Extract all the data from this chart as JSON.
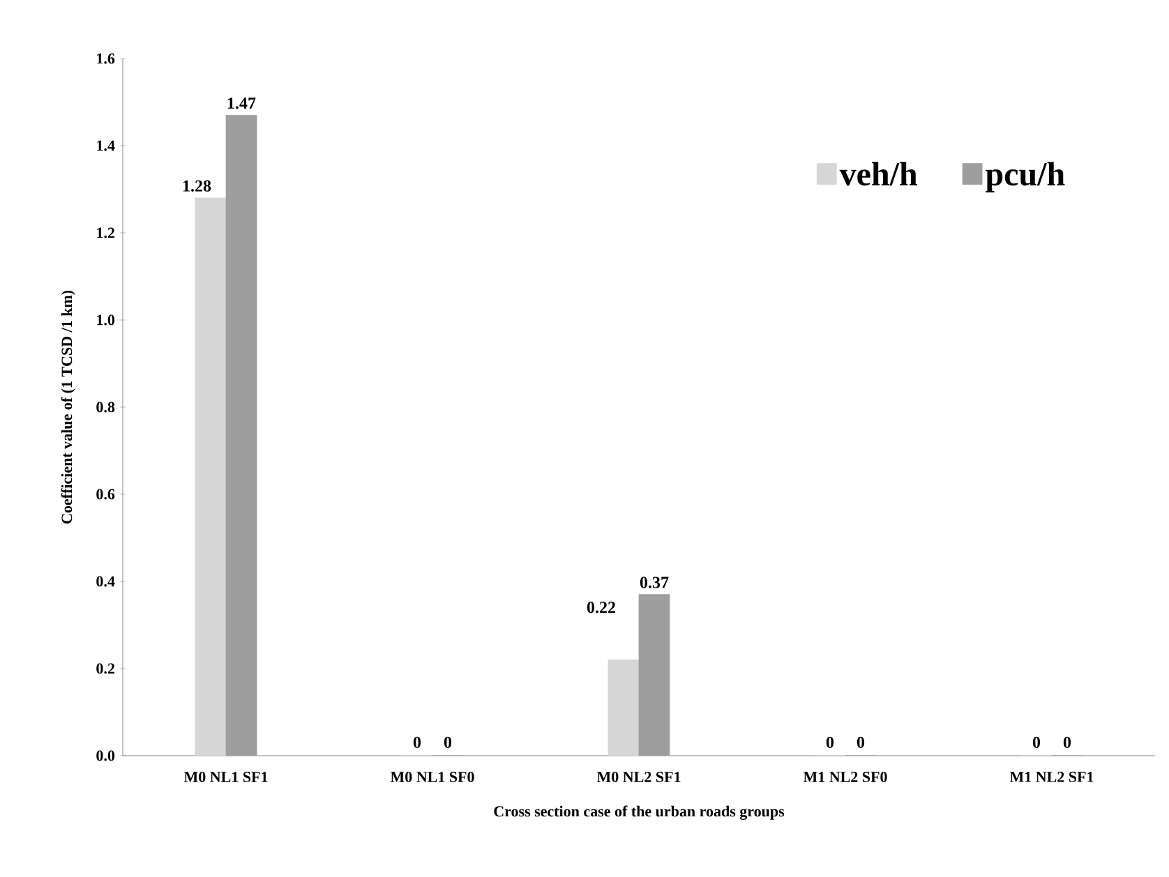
{
  "chart_data": {
    "type": "bar",
    "xlabel": "Cross section case of the urban roads groups",
    "ylabel": "Coefficient value of  (1 TCSD /1 km)",
    "categories": [
      "M0 NL1 SF1",
      "M0 NL1 SF0",
      "M0 NL2 SF1",
      "M1 NL2 SF0",
      "M1 NL2 SF1"
    ],
    "series": [
      {
        "name": "veh/h",
        "color": "#d6d6d6",
        "values": [
          1.28,
          0,
          0.22,
          0,
          0
        ]
      },
      {
        "name": "pcu/h",
        "color": "#9e9e9e",
        "values": [
          1.47,
          0,
          0.37,
          0,
          0
        ]
      }
    ],
    "ylim": [
      0,
      1.6
    ],
    "yticks": [
      {
        "value": 0,
        "label": "0.0"
      },
      {
        "value": 0.2,
        "label": "0.2"
      },
      {
        "value": 0.4,
        "label": "0.4"
      },
      {
        "value": 0.6,
        "label": "0.6"
      },
      {
        "value": 0.8,
        "label": "0.8"
      },
      {
        "value": 1.0,
        "label": "1.0"
      },
      {
        "value": 1.2,
        "label": "1.2"
      },
      {
        "value": 1.4,
        "label": "1.4"
      },
      {
        "value": 1.6,
        "label": "1.6"
      }
    ],
    "data_labels": true,
    "grid": false,
    "legend": "top right"
  }
}
